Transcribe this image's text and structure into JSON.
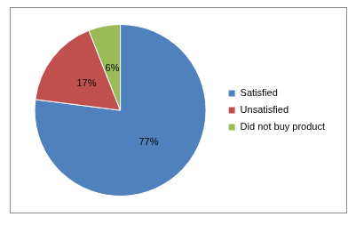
{
  "chart_data": {
    "type": "pie",
    "categories": [
      "Satisfied",
      "Unsatisfied",
      "Did not buy product"
    ],
    "values": [
      77,
      17,
      6
    ],
    "value_labels": [
      "77%",
      "17%",
      "6%"
    ],
    "colors": [
      "#4f81bd",
      "#c0504d",
      "#9bbb59"
    ],
    "legend": "right",
    "data_labels": true
  }
}
